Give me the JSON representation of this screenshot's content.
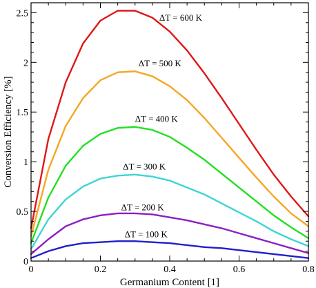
{
  "chart_data": {
    "type": "line",
    "title": "",
    "xlabel": "Germanium Content [1]",
    "ylabel": "Conversion Efficiency [%]",
    "xlim": [
      0,
      0.8
    ],
    "ylim": [
      0,
      2.6
    ],
    "x_ticks": [
      0,
      0.2,
      0.4,
      0.6,
      0.8
    ],
    "x_tick_labels": [
      "0",
      "0.2",
      "0.4",
      "0.6",
      "0.8"
    ],
    "y_ticks": [
      0,
      0.5,
      1,
      1.5,
      2,
      2.5
    ],
    "y_tick_labels": [
      "0",
      "0.5",
      "1",
      "1.5",
      "2",
      "2.5"
    ],
    "grid": false,
    "legend": "inline labels",
    "x": [
      0,
      0.05,
      0.1,
      0.15,
      0.2,
      0.25,
      0.3,
      0.35,
      0.4,
      0.45,
      0.5,
      0.55,
      0.6,
      0.65,
      0.7,
      0.75,
      0.8
    ],
    "series": [
      {
        "name": "ΔT = 100 K",
        "color": "#1f1fcc",
        "values": [
          0.03,
          0.1,
          0.15,
          0.18,
          0.19,
          0.2,
          0.2,
          0.19,
          0.18,
          0.16,
          0.14,
          0.13,
          0.11,
          0.09,
          0.07,
          0.05,
          0.03
        ]
      },
      {
        "name": "ΔT = 200 K",
        "color": "#8b1fc4",
        "values": [
          0.07,
          0.22,
          0.35,
          0.42,
          0.46,
          0.48,
          0.48,
          0.47,
          0.44,
          0.41,
          0.37,
          0.33,
          0.28,
          0.23,
          0.18,
          0.13,
          0.08
        ]
      },
      {
        "name": "ΔT = 300 K",
        "color": "#3fd4d4",
        "values": [
          0.12,
          0.42,
          0.62,
          0.75,
          0.83,
          0.86,
          0.87,
          0.85,
          0.81,
          0.74,
          0.67,
          0.58,
          0.49,
          0.4,
          0.3,
          0.22,
          0.15
        ]
      },
      {
        "name": "ΔT = 400 K",
        "color": "#22e022",
        "values": [
          0.18,
          0.64,
          0.96,
          1.16,
          1.28,
          1.34,
          1.35,
          1.32,
          1.25,
          1.14,
          1.02,
          0.88,
          0.74,
          0.6,
          0.46,
          0.34,
          0.23
        ]
      },
      {
        "name": "ΔT = 500 K",
        "color": "#f5a623",
        "values": [
          0.25,
          0.92,
          1.36,
          1.64,
          1.82,
          1.9,
          1.91,
          1.86,
          1.76,
          1.62,
          1.44,
          1.24,
          1.04,
          0.84,
          0.65,
          0.48,
          0.35
        ]
      },
      {
        "name": "ΔT = 600 K",
        "color": "#e01616",
        "values": [
          0.33,
          1.23,
          1.8,
          2.19,
          2.42,
          2.52,
          2.52,
          2.45,
          2.31,
          2.12,
          1.89,
          1.64,
          1.38,
          1.12,
          0.87,
          0.65,
          0.45
        ]
      }
    ],
    "annotations": [
      {
        "text": "ΔT = 100 K",
        "x": 0.27,
        "y": 0.24
      },
      {
        "text": "ΔT = 200 K",
        "x": 0.26,
        "y": 0.51
      },
      {
        "text": "ΔT = 300 K",
        "x": 0.265,
        "y": 0.92
      },
      {
        "text": "ΔT = 400 K",
        "x": 0.3,
        "y": 1.4
      },
      {
        "text": "ΔT = 500 K",
        "x": 0.31,
        "y": 1.96
      },
      {
        "text": "ΔT = 600 K",
        "x": 0.37,
        "y": 2.42
      }
    ]
  }
}
